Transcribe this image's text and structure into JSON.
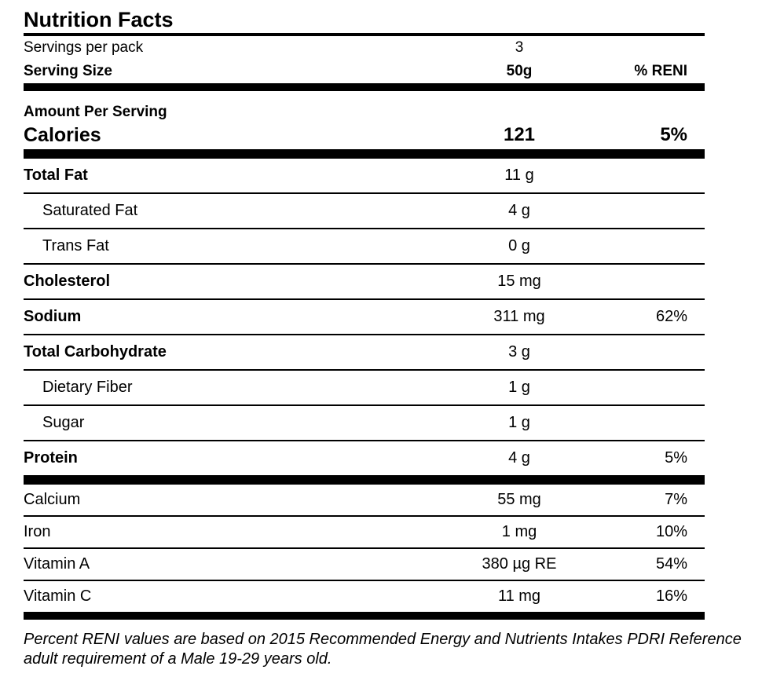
{
  "title": "Nutrition Facts",
  "header": {
    "servings_label": "Servings per pack",
    "servings_value": "3",
    "serving_size_label": "Serving Size",
    "serving_size_value": "50g",
    "reni_column_header": "% RENI"
  },
  "amount_per_serving_label": "Amount Per Serving",
  "calories": {
    "label": "Calories",
    "value": "121",
    "reni": "5%"
  },
  "nutrients": [
    {
      "label": "Total Fat",
      "value": "11 g",
      "reni": ""
    },
    {
      "label": "Saturated Fat",
      "value": "4 g",
      "reni": ""
    },
    {
      "label": "Trans Fat",
      "value": "0 g",
      "reni": ""
    },
    {
      "label": "Cholesterol",
      "value": "15 mg",
      "reni": ""
    },
    {
      "label": "Sodium",
      "value": "311 mg",
      "reni": "62%"
    },
    {
      "label": "Total Carbohydrate",
      "value": "3 g",
      "reni": ""
    },
    {
      "label": "Dietary Fiber",
      "value": "1 g",
      "reni": ""
    },
    {
      "label": "Sugar",
      "value": "1 g",
      "reni": ""
    },
    {
      "label": "Protein",
      "value": "4 g",
      "reni": "5%"
    }
  ],
  "micronutrients": [
    {
      "label": "Calcium",
      "value": "55 mg",
      "reni": "7%"
    },
    {
      "label": "Iron",
      "value": "1 mg",
      "reni": "10%"
    },
    {
      "label": "Vitamin A",
      "value": "380 µg RE",
      "reni": "54%"
    },
    {
      "label": "Vitamin C",
      "value": "11 mg",
      "reni": "16%"
    }
  ],
  "footnote": {
    "line1": "Percent RENI values are based on 2015 Recommended Energy and Nutrients Intakes PDRI Reference",
    "line2": "adult requirement of a Male 19-29 years old."
  }
}
